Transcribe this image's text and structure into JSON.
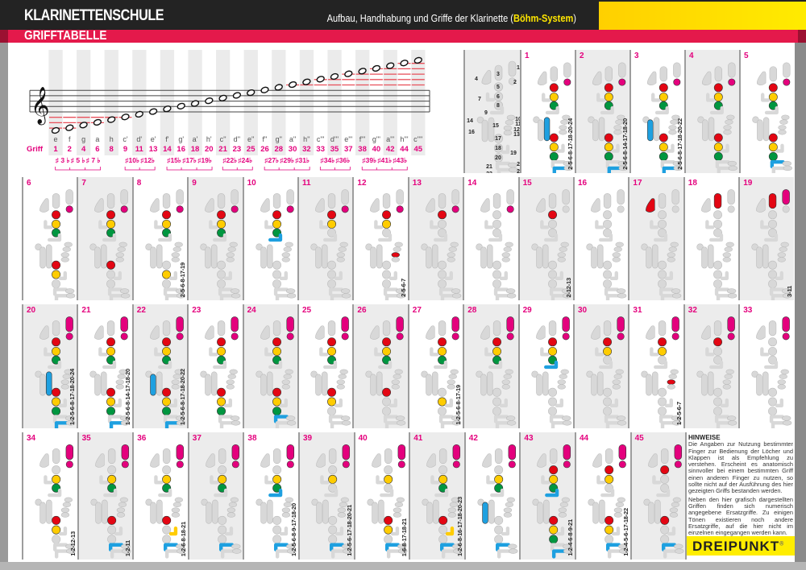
{
  "header": {
    "title": "KLARINETTENSCHULE",
    "subtitle_pre": "Aufbau, Handhabung und Griffe der Klarinette (",
    "subtitle_highlight": "Böhm-System",
    "subtitle_post": ")",
    "section": "GRIFFTABELLE"
  },
  "colors": {
    "pink": "#e4007d",
    "red": "#e30613",
    "yellow": "#ffcc00",
    "green": "#009640",
    "blue": "#1ea0e0",
    "grey": "#d8d8d8",
    "header": "#232323",
    "band": "#e4194b"
  },
  "staff": {
    "griff_label": "Griff",
    "notes": [
      {
        "name": "e",
        "griff": "1"
      },
      {
        "name": "f",
        "griff": "2"
      },
      {
        "name": "g",
        "griff": "4"
      },
      {
        "name": "a",
        "griff": "6"
      },
      {
        "name": "h",
        "griff": "8"
      },
      {
        "name": "c'",
        "griff": "9"
      },
      {
        "name": "d'",
        "griff": "11"
      },
      {
        "name": "e'",
        "griff": "13"
      },
      {
        "name": "f'",
        "griff": "14"
      },
      {
        "name": "g'",
        "griff": "16"
      },
      {
        "name": "a'",
        "griff": "18"
      },
      {
        "name": "h'",
        "griff": "20"
      },
      {
        "name": "c''",
        "griff": "21"
      },
      {
        "name": "d''",
        "griff": "23"
      },
      {
        "name": "e''",
        "griff": "25"
      },
      {
        "name": "f''",
        "griff": "26"
      },
      {
        "name": "g''",
        "griff": "28"
      },
      {
        "name": "a''",
        "griff": "30"
      },
      {
        "name": "h''",
        "griff": "32"
      },
      {
        "name": "c'''",
        "griff": "33"
      },
      {
        "name": "d'''",
        "griff": "35"
      },
      {
        "name": "e'''",
        "griff": "37"
      },
      {
        "name": "f'''",
        "griff": "38"
      },
      {
        "name": "g'''",
        "griff": "40"
      },
      {
        "name": "a'''",
        "griff": "42"
      },
      {
        "name": "h'''",
        "griff": "44"
      },
      {
        "name": "c''''",
        "griff": "45"
      }
    ],
    "accidental_groups": [
      {
        "after": 0,
        "labels": [
          "♯ 3 ♭",
          "♯ 5 ♭",
          "♯ 7 ♭"
        ]
      },
      {
        "after": 5,
        "labels": [
          "♯10♭",
          "♯12♭"
        ]
      },
      {
        "after": 8,
        "labels": [
          "♯15♭",
          "♯17♭",
          "♯19♭"
        ]
      },
      {
        "after": 12,
        "labels": [
          "♯22♭",
          "♯24♭"
        ]
      },
      {
        "after": 15,
        "labels": [
          "♯27♭",
          "♯29♭",
          "♯31♭"
        ]
      },
      {
        "after": 19,
        "labels": [
          "♯34♭",
          "♯36♭"
        ]
      },
      {
        "after": 22,
        "labels": [
          "♯39♭",
          "♯41♭",
          "♯43♭"
        ]
      }
    ]
  },
  "legend": {
    "labels": [
      "1",
      "2",
      "3",
      "4",
      "5",
      "6",
      "7",
      "8",
      "9",
      "10",
      "11",
      "12",
      "13",
      "14",
      "15",
      "16",
      "17",
      "18",
      "19",
      "20",
      "21",
      "22",
      "23",
      "24"
    ]
  },
  "fingerings": [
    {
      "num": "1",
      "keys": [
        2,
        5,
        6,
        8,
        15,
        17,
        18,
        20,
        23
      ],
      "alt": "2-5-6-8-17-18-20-24"
    },
    {
      "num": "2",
      "keys": [
        2,
        5,
        6,
        8,
        17,
        18,
        20,
        23
      ],
      "alt": "2-5-6-8-14-17-18-20"
    },
    {
      "num": "3",
      "keys": [
        2,
        5,
        6,
        8,
        16,
        17,
        18,
        20,
        23
      ],
      "alt": "2-5-6-8-17-18-20-22"
    },
    {
      "num": "4",
      "keys": [
        2,
        5,
        6,
        8,
        17,
        18,
        20
      ],
      "alt": ""
    },
    {
      "num": "5",
      "keys": [
        2,
        5,
        6,
        8,
        17,
        18,
        20,
        21
      ],
      "alt": ""
    },
    {
      "num": "6",
      "keys": [
        2,
        5,
        6,
        8,
        17,
        18
      ],
      "alt": ""
    },
    {
      "num": "7",
      "keys": [
        2,
        5,
        6,
        8,
        17
      ],
      "alt": ""
    },
    {
      "num": "8",
      "keys": [
        2,
        5,
        6,
        8,
        18
      ],
      "alt": "2-5-6-8-17-19"
    },
    {
      "num": "9",
      "keys": [
        2,
        5,
        6,
        8
      ],
      "alt": ""
    },
    {
      "num": "10",
      "keys": [
        2,
        5,
        6,
        8,
        9
      ],
      "alt": ""
    },
    {
      "num": "11",
      "keys": [
        2,
        5,
        6
      ],
      "alt": ""
    },
    {
      "num": "12",
      "keys": [
        2,
        5,
        6,
        12
      ],
      "alt": "2-5-6-7"
    },
    {
      "num": "13",
      "keys": [
        2,
        5
      ],
      "alt": ""
    },
    {
      "num": "14",
      "keys": [
        2
      ],
      "alt": ""
    },
    {
      "num": "15",
      "keys": [
        5
      ],
      "alt": "2-12-13"
    },
    {
      "num": "16",
      "keys": [],
      "alt": ""
    },
    {
      "num": "17",
      "keys": [
        4
      ],
      "alt": ""
    },
    {
      "num": "18",
      "keys": [
        3
      ],
      "alt": ""
    },
    {
      "num": "19",
      "keys": [
        1,
        3
      ],
      "alt": "3-11"
    },
    {
      "num": "20",
      "keys": [
        1,
        2,
        5,
        6,
        8,
        15,
        17,
        18,
        20,
        23
      ],
      "alt": "1-2-5-6-8-17-18-20-24"
    },
    {
      "num": "21",
      "keys": [
        1,
        2,
        5,
        6,
        8,
        17,
        18,
        20,
        23
      ],
      "alt": "1-2-5-6-8-14-17-18-20"
    },
    {
      "num": "22",
      "keys": [
        1,
        2,
        5,
        6,
        8,
        16,
        17,
        18,
        20,
        23
      ],
      "alt": "1-2-5-6-8-17-18-20-22"
    },
    {
      "num": "23",
      "keys": [
        1,
        2,
        5,
        6,
        8,
        17,
        18,
        20
      ],
      "alt": ""
    },
    {
      "num": "24",
      "keys": [
        1,
        2,
        5,
        6,
        8,
        17,
        18,
        20,
        21
      ],
      "alt": ""
    },
    {
      "num": "25",
      "keys": [
        1,
        2,
        5,
        6,
        8,
        17,
        18
      ],
      "alt": ""
    },
    {
      "num": "26",
      "keys": [
        1,
        2,
        5,
        6,
        8,
        17
      ],
      "alt": ""
    },
    {
      "num": "27",
      "keys": [
        1,
        2,
        5,
        6,
        8,
        18
      ],
      "alt": "1-2-5-6-8-17-19"
    },
    {
      "num": "28",
      "keys": [
        1,
        2,
        5,
        6,
        8
      ],
      "alt": ""
    },
    {
      "num": "29",
      "keys": [
        1,
        2,
        5,
        6,
        8,
        9
      ],
      "alt": ""
    },
    {
      "num": "30",
      "keys": [
        1,
        2,
        5,
        6
      ],
      "alt": ""
    },
    {
      "num": "31",
      "keys": [
        1,
        2,
        5,
        6,
        12
      ],
      "alt": "1-2-5-6-7"
    },
    {
      "num": "32",
      "keys": [
        1,
        2,
        5
      ],
      "alt": ""
    },
    {
      "num": "33",
      "keys": [
        1,
        2
      ],
      "alt": ""
    },
    {
      "num": "34",
      "keys": [
        1,
        2,
        6,
        8,
        17,
        18
      ],
      "alt": "1-2-12-13"
    },
    {
      "num": "35",
      "keys": [
        1,
        2,
        6,
        8,
        17,
        21
      ],
      "alt": "1-2-11"
    },
    {
      "num": "36",
      "keys": [
        1,
        2,
        6,
        8,
        17,
        19,
        21
      ],
      "alt": "1-2-6-8-18-21"
    },
    {
      "num": "37",
      "keys": [
        1,
        2,
        6,
        8,
        21
      ],
      "alt": ""
    },
    {
      "num": "38",
      "keys": [
        1,
        2,
        6,
        8,
        9,
        21
      ],
      "alt": "1-2-5-6-8-9-17-18-20"
    },
    {
      "num": "39",
      "keys": [
        1,
        2,
        6,
        21
      ],
      "alt": "1-2-5-6-17-18-20-21"
    },
    {
      "num": "40",
      "keys": [
        1,
        2,
        6,
        17,
        18,
        21
      ],
      "alt": "1-6-8-17-18-21"
    },
    {
      "num": "41",
      "keys": [
        1,
        2,
        6,
        8,
        17,
        19,
        21
      ],
      "alt": "1-2-6-8-16-17-18-20-23"
    },
    {
      "num": "42",
      "keys": [
        1,
        2,
        6,
        8,
        16,
        21
      ],
      "alt": ""
    },
    {
      "num": "43",
      "keys": [
        1,
        2,
        5,
        6,
        8,
        9,
        17,
        18,
        20,
        23
      ],
      "alt": "1-2-4-6-8-9-21"
    },
    {
      "num": "44",
      "keys": [
        1,
        2,
        5,
        6,
        17,
        18,
        21
      ],
      "alt": "1-2-4-5-6-17-18-22"
    },
    {
      "num": "45",
      "keys": [
        1,
        2,
        5,
        17,
        21
      ],
      "alt": ""
    }
  ],
  "hints": {
    "title": "HINWEISE",
    "p1": "Die Angaben zur Nutzung bestimmter Finger zur Bedienung der Löcher und Klappen ist als Empfehlung zu verstehen. Erscheint es anatomisch sinnvoller bei einem bestimmten Griff einen anderen Finger zu nutzen, so sollte nicht auf der Ausführung des hier gezeigten Griffs bestanden werden.",
    "p2": "Neben den hier grafisch dargestellten Griffen finden sich numerisch angegebene Ersatzgriffe. Zu einigen Tönen existieren noch andere Ersatzgriffe, auf die hier nicht im einzelnen eingegangen werden kann."
  },
  "logo": {
    "text": "DREIPUNKT",
    "mark": "®"
  }
}
